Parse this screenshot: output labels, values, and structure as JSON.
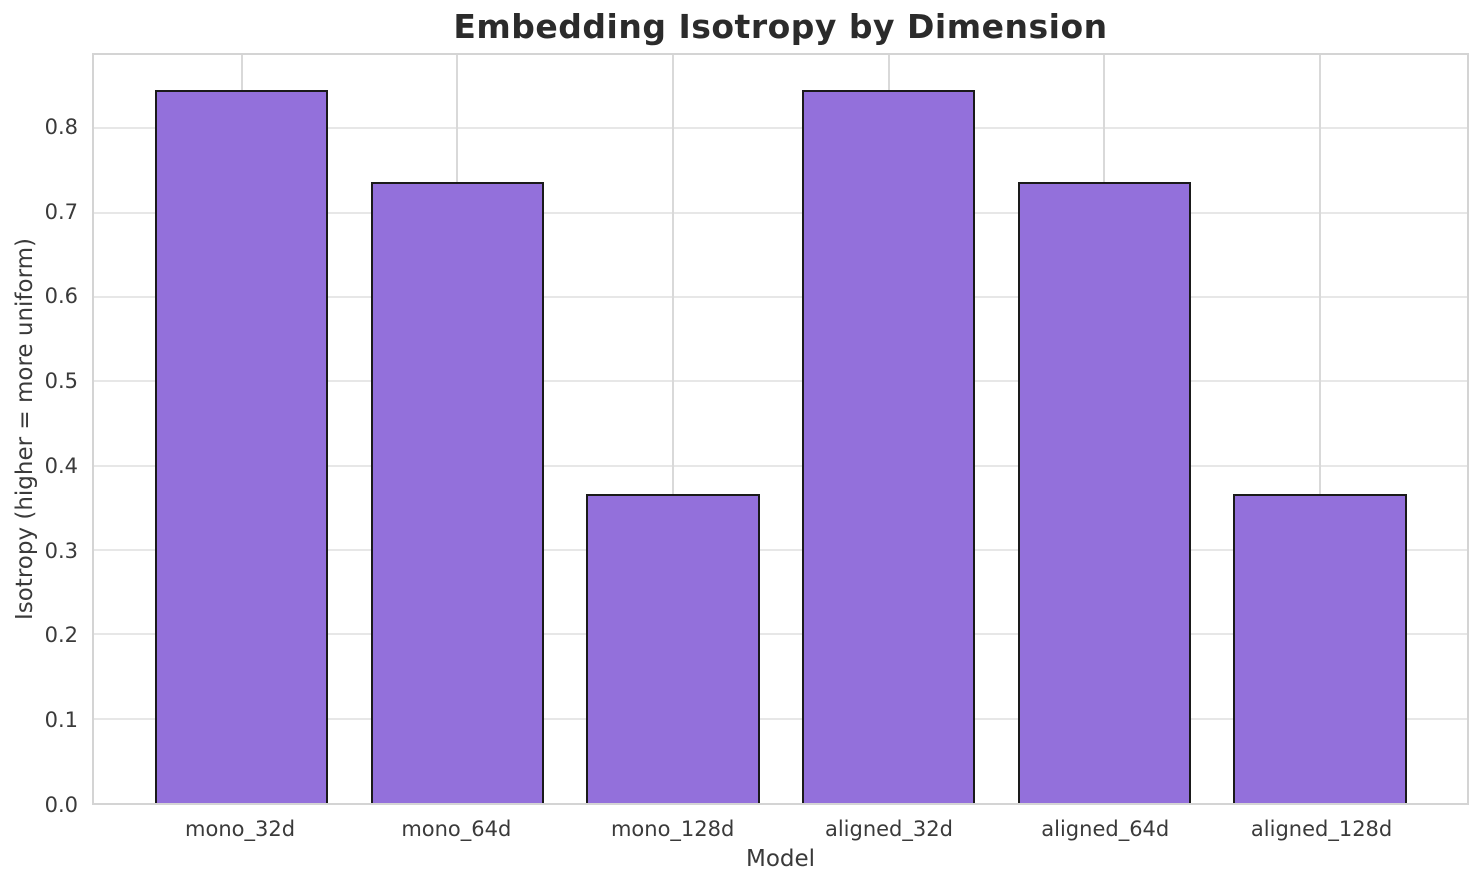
{
  "chart_data": {
    "type": "bar",
    "title": "Embedding Isotropy by Dimension",
    "xlabel": "Model",
    "ylabel": "Isotropy (higher = more uniform)",
    "categories": [
      "mono_32d",
      "mono_64d",
      "mono_128d",
      "aligned_32d",
      "aligned_64d",
      "aligned_128d"
    ],
    "values": [
      0.845,
      0.736,
      0.366,
      0.845,
      0.736,
      0.366
    ],
    "ylim": [
      0,
      0.887
    ],
    "yticks": [
      0.0,
      0.1,
      0.2,
      0.3,
      0.4,
      0.5,
      0.6,
      0.7,
      0.8
    ],
    "ytick_labels": [
      "0.0",
      "0.1",
      "0.2",
      "0.3",
      "0.4",
      "0.5",
      "0.6",
      "0.7",
      "0.8"
    ],
    "grid": true,
    "legend_position": "none",
    "colors": {
      "bar_fill": "#9370DB",
      "bar_edge": "#1a1a1a",
      "grid_horizontal": "#e7e7e7",
      "grid_vertical": "#d9d9d9",
      "spine": "#d4d4d4",
      "text": "#3a3a3a",
      "title": "#2b2b2b",
      "background": "#ffffff"
    }
  }
}
